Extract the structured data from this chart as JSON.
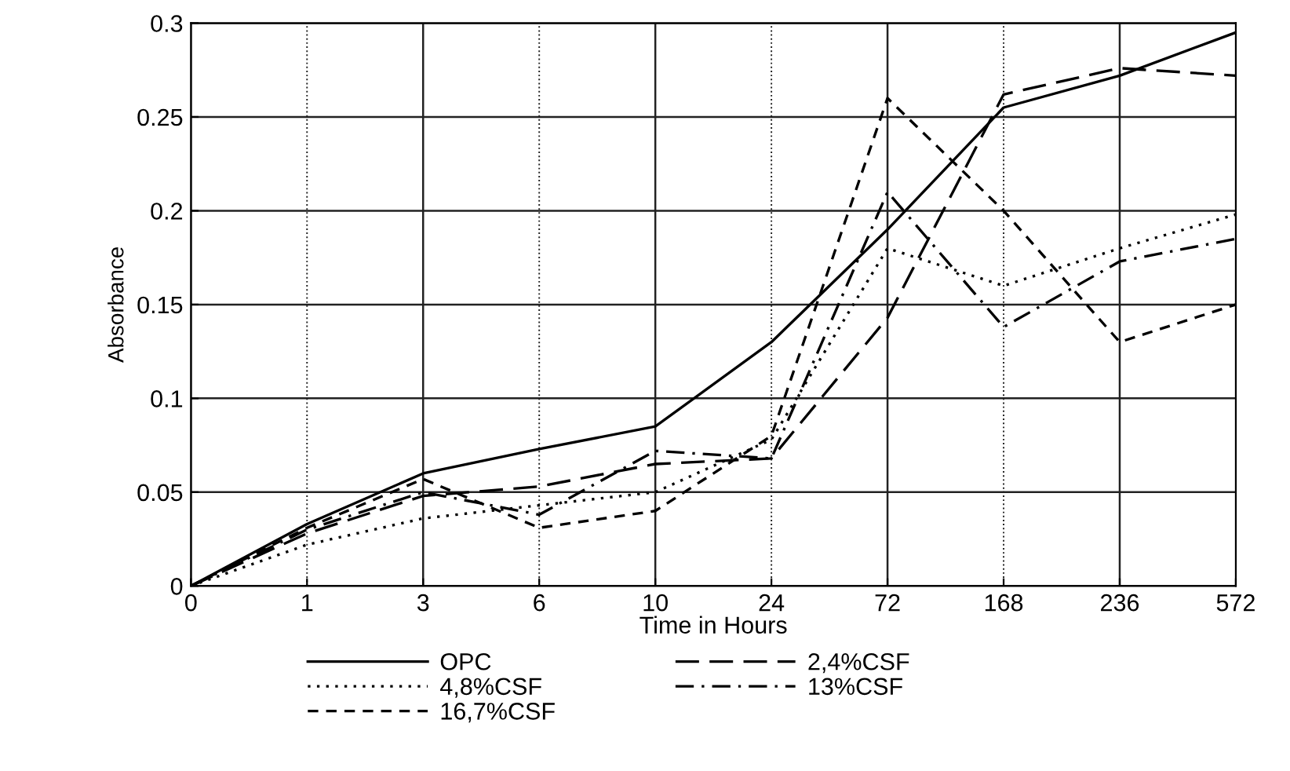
{
  "chart_data": {
    "type": "line",
    "xlabel": "Time in Hours",
    "ylabel": "Absorbance",
    "categories": [
      "0",
      "1",
      "3",
      "6",
      "10",
      "24",
      "72",
      "168",
      "236",
      "572"
    ],
    "ylim": [
      0,
      0.3
    ],
    "yticks": [
      {
        "value": 0,
        "label": "0"
      },
      0.05,
      0.1,
      0.15,
      0.2,
      0.25,
      0.3
    ],
    "grid": true,
    "legend": "bottom",
    "series": [
      {
        "name": "OPC",
        "color": "#000000",
        "line_style": "solid",
        "values": [
          0,
          0.033,
          0.06,
          0.073,
          0.085,
          0.13,
          0.19,
          0.255,
          0.272,
          0.295
        ]
      },
      {
        "name": "2,4%CSF",
        "color": "#000000",
        "line_style": "dashed",
        "values": [
          0,
          0.028,
          0.048,
          0.053,
          0.065,
          0.068,
          0.143,
          0.262,
          0.276,
          0.272
        ]
      },
      {
        "name": "4,8%CSF",
        "color": "#000000",
        "line_style": "dotted",
        "values": [
          0,
          0.022,
          0.036,
          0.043,
          0.05,
          0.078,
          0.18,
          0.16,
          0.18,
          0.198
        ]
      },
      {
        "name": "13%CSF",
        "color": "#000000",
        "line_style": "dashdot",
        "values": [
          0,
          0.03,
          0.05,
          0.038,
          0.072,
          0.068,
          0.21,
          0.138,
          0.173,
          0.185
        ]
      },
      {
        "name": "16,7%CSF",
        "color": "#000000",
        "line_style": "shortdash",
        "values": [
          0,
          0.031,
          0.057,
          0.031,
          0.04,
          0.08,
          0.26,
          0.2,
          0.13,
          0.15
        ]
      }
    ]
  }
}
